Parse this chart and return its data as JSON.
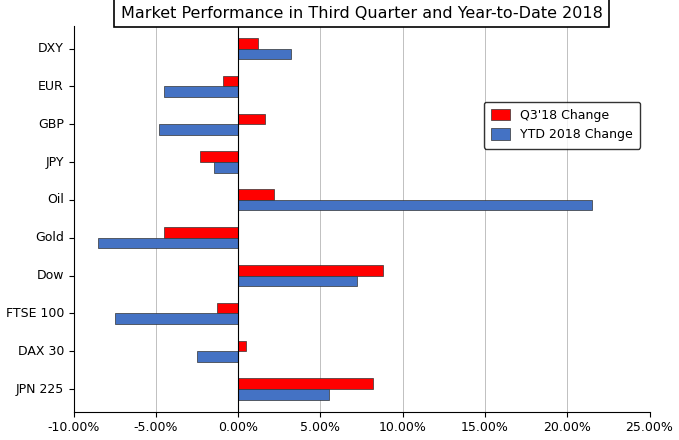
{
  "title": "Market Performance in Third Quarter and Year-to-Date 2018",
  "categories": [
    "DXY",
    "EUR",
    "GBP",
    "JPY",
    "Oil",
    "Gold",
    "Dow",
    "FTSE 100",
    "DAX 30",
    "JPN 225"
  ],
  "q3_values": [
    1.2,
    -0.9,
    1.6,
    -2.3,
    2.2,
    -4.5,
    8.8,
    -1.3,
    0.5,
    8.2
  ],
  "ytd_values": [
    3.2,
    -4.5,
    -4.8,
    -1.5,
    21.5,
    -8.5,
    7.2,
    -7.5,
    -2.5,
    5.5
  ],
  "q3_color": "#FF0000",
  "ytd_color": "#4472C4",
  "background_color": "#FFFFFF",
  "xlim_min": -10,
  "xlim_max": 25,
  "xticks": [
    -10,
    -5,
    0,
    5,
    10,
    15,
    20,
    25
  ],
  "xtick_labels": [
    "-10.00%",
    "-5.00%",
    "0.00%",
    "5.00%",
    "10.00%",
    "15.00%",
    "20.00%",
    "25.00%"
  ],
  "legend_labels": [
    "Q3'18 Change",
    "YTD 2018 Change"
  ],
  "bar_height": 0.28,
  "title_fontsize": 11.5,
  "tick_fontsize": 9,
  "legend_fontsize": 9
}
